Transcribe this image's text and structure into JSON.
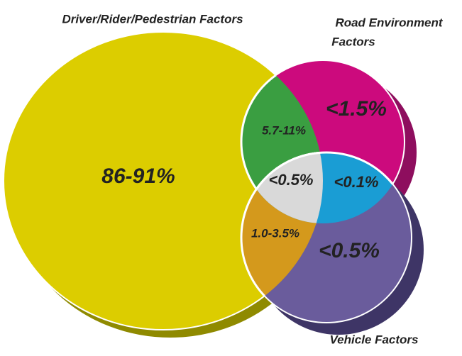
{
  "sets": {
    "driver": {
      "label": "Driver/Rider/Pedestrian Factors"
    },
    "road": {
      "label_lines": [
        "Road Environment",
        "Factors"
      ]
    },
    "vehicle": {
      "label": "Vehicle Factors"
    }
  },
  "regions": {
    "driver_only": "86-91%",
    "road_only": "<1.5%",
    "vehicle_only": "<0.5%",
    "driver_road": "5.7-11%",
    "driver_vehicle": "1.0-3.5%",
    "road_vehicle": "<0.1%",
    "all_three": "<0.5%"
  }
}
